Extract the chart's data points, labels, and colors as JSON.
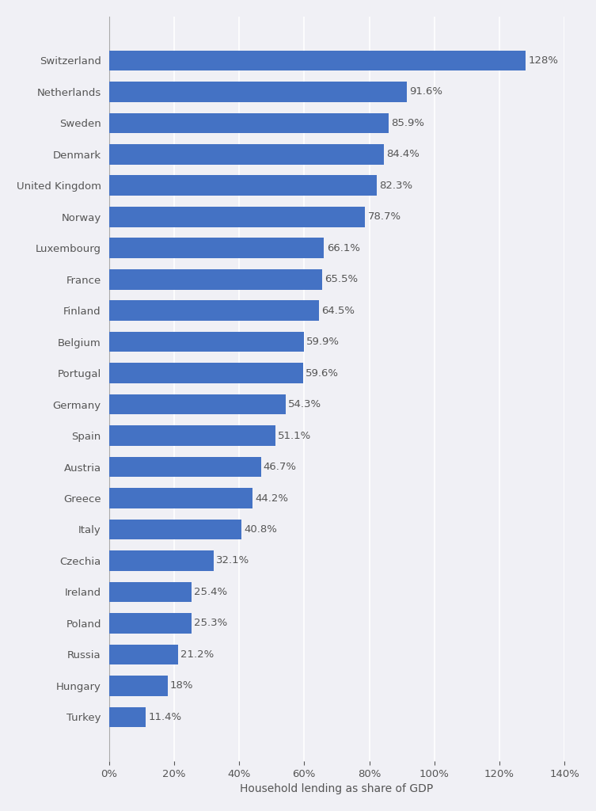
{
  "countries": [
    "Switzerland",
    "Netherlands",
    "Sweden",
    "Denmark",
    "United Kingdom",
    "Norway",
    "Luxembourg",
    "France",
    "Finland",
    "Belgium",
    "Portugal",
    "Germany",
    "Spain",
    "Austria",
    "Greece",
    "Italy",
    "Czechia",
    "Ireland",
    "Poland",
    "Russia",
    "Hungary",
    "Turkey"
  ],
  "values": [
    128.0,
    91.6,
    85.9,
    84.4,
    82.3,
    78.7,
    66.1,
    65.5,
    64.5,
    59.9,
    59.6,
    54.3,
    51.1,
    46.7,
    44.2,
    40.8,
    32.1,
    25.4,
    25.3,
    21.2,
    18.0,
    11.4
  ],
  "labels": [
    "128%",
    "91.6%",
    "85.9%",
    "84.4%",
    "82.3%",
    "78.7%",
    "66.1%",
    "65.5%",
    "64.5%",
    "59.9%",
    "59.6%",
    "54.3%",
    "51.1%",
    "46.7%",
    "44.2%",
    "40.8%",
    "32.1%",
    "25.4%",
    "25.3%",
    "21.2%",
    "18%",
    "11.4%"
  ],
  "bar_color": "#4472C4",
  "background_color": "#f0f0f5",
  "plot_background_color": "#f0f0f5",
  "xlabel": "Household lending as share of GDP",
  "xlim": [
    0,
    140
  ],
  "xtick_values": [
    0,
    20,
    40,
    60,
    80,
    100,
    120,
    140
  ],
  "xtick_labels": [
    "0%",
    "20%",
    "40%",
    "60%",
    "80%",
    "100%",
    "120%",
    "140%"
  ],
  "grid_color": "#ffffff",
  "label_color": "#555555",
  "tick_label_color": "#555555",
  "axis_label_color": "#555555",
  "bar_height": 0.65,
  "label_fontsize": 9.5,
  "tick_fontsize": 9.5,
  "xlabel_fontsize": 10
}
